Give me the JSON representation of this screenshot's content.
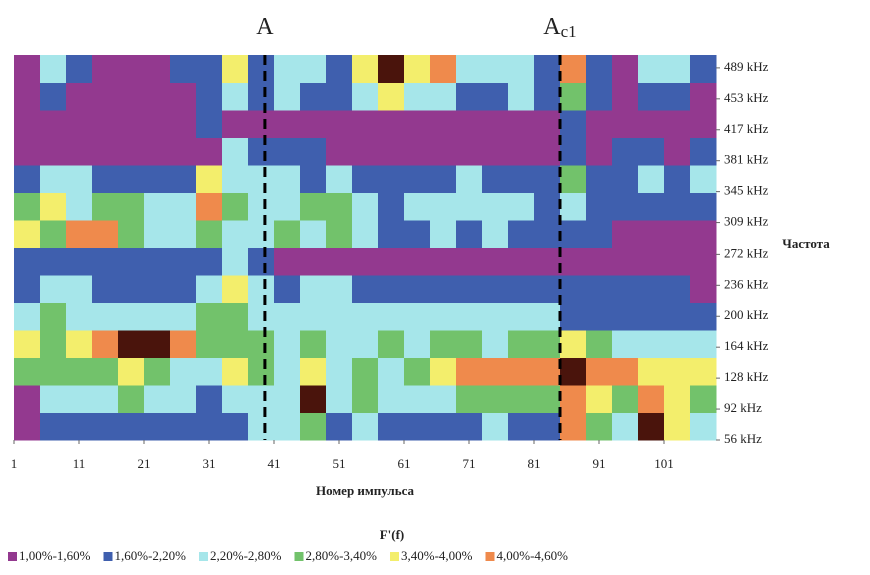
{
  "chart_data": {
    "type": "heatmap",
    "x_label": "Номер импульса",
    "y_label": "Частота",
    "legend_title": "F'(f)",
    "x": [
      3,
      7,
      11,
      15,
      19,
      23,
      27,
      31,
      35,
      39,
      43,
      47,
      51,
      55,
      59,
      63,
      67,
      71,
      75,
      79,
      83,
      87,
      91,
      95,
      99,
      103,
      107
    ],
    "y": [
      72,
      104,
      136,
      168,
      200,
      232,
      264,
      296,
      328,
      360,
      392,
      424,
      456,
      488
    ],
    "xlim": [
      1,
      109
    ],
    "ylim": [
      56,
      504
    ],
    "xticks": [
      1,
      11,
      21,
      31,
      41,
      51,
      61,
      71,
      81,
      91,
      101
    ],
    "yticks": [
      {
        "value": 56,
        "label": "56 kHz"
      },
      {
        "value": 92,
        "label": "92 kHz"
      },
      {
        "value": 128,
        "label": "128 kHz"
      },
      {
        "value": 164,
        "label": "164 kHz"
      },
      {
        "value": 200,
        "label": "200 kHz"
      },
      {
        "value": 236,
        "label": "236 kHz"
      },
      {
        "value": 272,
        "label": "272 kHz"
      },
      {
        "value": 309,
        "label": "309 kHz"
      },
      {
        "value": 345,
        "label": "345 kHz"
      },
      {
        "value": 381,
        "label": "381 kHz"
      },
      {
        "value": 417,
        "label": "417 kHz"
      },
      {
        "value": 453,
        "label": "453 kHz"
      },
      {
        "value": 489,
        "label": "489 kHz"
      }
    ],
    "z": [
      [
        1.3,
        1.9,
        1.9,
        1.9,
        1.9,
        1.9,
        1.9,
        1.9,
        1.9,
        2.5,
        2.5,
        3.1,
        1.9,
        2.5,
        1.9,
        1.9,
        1.9,
        1.9,
        2.5,
        1.9,
        1.9,
        4.3,
        3.1,
        2.5,
        4.9,
        3.7,
        2.5
      ],
      [
        1.3,
        2.5,
        2.5,
        2.5,
        3.1,
        2.5,
        2.5,
        1.9,
        2.5,
        2.5,
        2.5,
        4.9,
        2.5,
        3.1,
        2.5,
        2.5,
        2.5,
        3.1,
        3.1,
        3.1,
        3.1,
        4.3,
        3.7,
        3.1,
        4.3,
        3.7,
        3.1
      ],
      [
        3.1,
        3.1,
        3.1,
        3.1,
        3.7,
        3.1,
        2.5,
        2.5,
        3.7,
        3.1,
        2.5,
        3.7,
        2.5,
        3.1,
        2.5,
        3.1,
        3.7,
        4.3,
        4.3,
        4.3,
        4.3,
        4.9,
        4.3,
        4.3,
        3.7,
        3.7,
        3.7
      ],
      [
        3.7,
        3.1,
        3.7,
        4.3,
        4.9,
        4.9,
        4.3,
        3.1,
        3.1,
        3.1,
        2.5,
        3.1,
        2.5,
        2.5,
        3.1,
        2.5,
        3.1,
        3.1,
        2.5,
        3.1,
        3.1,
        3.7,
        3.1,
        2.5,
        2.5,
        2.5,
        2.5
      ],
      [
        2.5,
        3.1,
        2.5,
        2.5,
        2.5,
        2.5,
        2.5,
        3.1,
        3.1,
        2.5,
        2.5,
        2.5,
        2.5,
        2.5,
        2.5,
        2.5,
        2.5,
        2.5,
        2.5,
        2.5,
        2.5,
        1.9,
        1.9,
        1.9,
        1.9,
        1.9,
        1.9
      ],
      [
        1.9,
        2.5,
        2.5,
        1.9,
        1.9,
        1.9,
        1.9,
        2.5,
        3.7,
        2.5,
        1.9,
        2.5,
        2.5,
        1.9,
        1.9,
        1.9,
        1.9,
        1.9,
        1.9,
        1.9,
        1.9,
        1.9,
        1.9,
        1.9,
        1.9,
        1.9,
        1.3
      ],
      [
        1.9,
        1.9,
        1.9,
        1.9,
        1.9,
        1.9,
        1.9,
        1.9,
        2.5,
        1.9,
        1.3,
        1.3,
        1.3,
        1.3,
        1.3,
        1.3,
        1.3,
        1.3,
        1.3,
        1.3,
        1.3,
        1.3,
        1.3,
        1.3,
        1.3,
        1.3,
        1.3
      ],
      [
        3.7,
        3.1,
        4.3,
        4.3,
        3.1,
        2.5,
        2.5,
        3.1,
        2.5,
        2.5,
        3.1,
        2.5,
        3.1,
        2.5,
        1.9,
        1.9,
        2.5,
        1.9,
        2.5,
        1.9,
        1.9,
        1.9,
        1.9,
        1.3,
        1.3,
        1.3,
        1.3
      ],
      [
        3.1,
        3.7,
        2.5,
        3.1,
        3.1,
        2.5,
        2.5,
        4.3,
        3.1,
        2.5,
        2.5,
        3.1,
        3.1,
        2.5,
        1.9,
        2.5,
        2.5,
        2.5,
        2.5,
        2.5,
        1.9,
        2.5,
        1.9,
        1.9,
        1.9,
        1.9,
        1.9
      ],
      [
        1.9,
        2.5,
        2.5,
        1.9,
        1.9,
        1.9,
        1.9,
        3.7,
        2.5,
        2.5,
        2.5,
        1.9,
        2.5,
        1.9,
        1.9,
        1.9,
        1.9,
        2.5,
        1.9,
        1.9,
        1.9,
        3.1,
        1.9,
        1.9,
        2.5,
        1.9,
        2.5
      ],
      [
        1.3,
        1.3,
        1.3,
        1.3,
        1.3,
        1.3,
        1.3,
        1.3,
        2.5,
        1.9,
        1.9,
        1.9,
        1.3,
        1.3,
        1.3,
        1.3,
        1.3,
        1.3,
        1.3,
        1.3,
        1.3,
        1.9,
        1.3,
        1.9,
        1.9,
        1.3,
        1.9
      ],
      [
        1.3,
        1.3,
        1.3,
        1.3,
        1.3,
        1.3,
        1.3,
        1.9,
        1.3,
        1.3,
        1.3,
        1.3,
        1.3,
        1.3,
        1.3,
        1.3,
        1.3,
        1.3,
        1.3,
        1.3,
        1.3,
        1.9,
        1.3,
        1.3,
        1.3,
        1.3,
        1.3
      ],
      [
        1.3,
        1.9,
        1.3,
        1.3,
        1.3,
        1.3,
        1.3,
        1.9,
        2.5,
        1.9,
        2.5,
        1.9,
        1.9,
        2.5,
        3.7,
        2.5,
        2.5,
        1.9,
        1.9,
        2.5,
        1.9,
        3.1,
        1.9,
        1.3,
        1.9,
        1.9,
        1.3
      ],
      [
        1.3,
        2.5,
        1.9,
        1.3,
        1.3,
        1.3,
        1.9,
        1.9,
        3.7,
        1.9,
        2.5,
        2.5,
        1.9,
        3.7,
        4.9,
        3.7,
        4.3,
        2.5,
        2.5,
        2.5,
        1.9,
        4.3,
        1.9,
        1.3,
        2.5,
        2.5,
        1.9
      ]
    ],
    "levels": {
      "names": [
        "1,00%-1,60%",
        "1,60%-2,20%",
        "2,20%-2,80%",
        "2,80%-3,40%",
        "3,40%-4,00%",
        "4,00%-4,60%"
      ],
      "bounds": [
        1.0,
        1.6,
        2.2,
        2.8,
        3.4,
        4.0,
        4.6
      ],
      "colors": [
        "#93398f",
        "#3f5fae",
        "#a6e6ea",
        "#72c26b",
        "#f3ee6c",
        "#ef8a4c"
      ],
      "over_color": "#4a140c"
    },
    "annotations": [
      {
        "text": "A",
        "x": 39.6
      },
      {
        "text": "A",
        "sub": "c1",
        "x": 85
      }
    ]
  }
}
